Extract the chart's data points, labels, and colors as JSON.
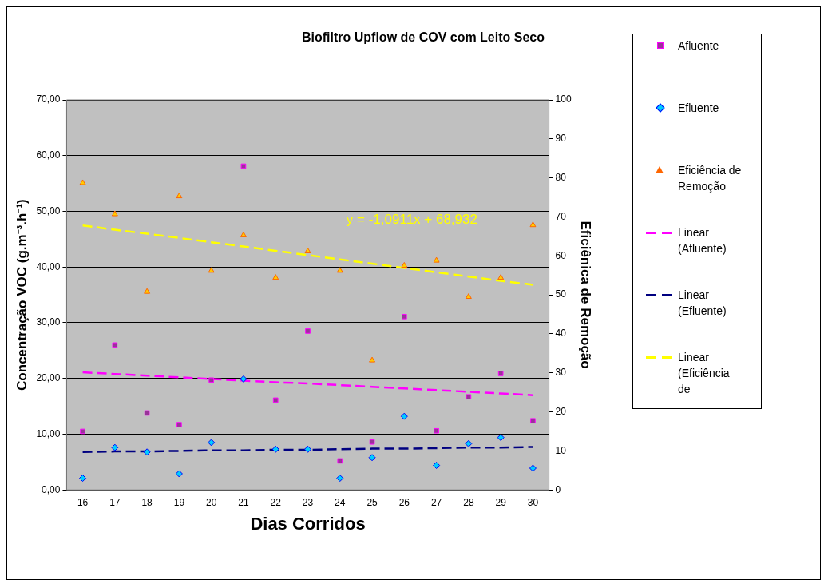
{
  "chart_data": {
    "type": "scatter",
    "title": "Biofiltro Upflow de COV com Leito Seco",
    "xlabel": "Dias Corridos",
    "ylabel": "Concentração VOC (g.m⁻³.h⁻¹)",
    "y2label": "Eficiênica de Remoção",
    "categories": [
      "16",
      "17",
      "18",
      "19",
      "20",
      "21",
      "22",
      "23",
      "24",
      "25",
      "26",
      "27",
      "28",
      "29",
      "30"
    ],
    "series": [
      {
        "name": "Afluente",
        "type": "scatter",
        "marker": "square",
        "color": "#993399",
        "values": [
          10.5,
          26.0,
          13.8,
          11.7,
          19.7,
          58.1,
          16.1,
          28.5,
          5.2,
          8.6,
          31.1,
          10.6,
          16.7,
          20.9,
          12.4
        ]
      },
      {
        "name": "Efluente",
        "type": "scatter",
        "marker": "diamond",
        "color": "#00ccff",
        "values": [
          2.1,
          7.6,
          6.8,
          2.9,
          8.5,
          19.9,
          7.3,
          7.3,
          2.1,
          5.8,
          13.2,
          4.4,
          8.3,
          9.4,
          3.9
        ]
      },
      {
        "name": "Eficiência de Remoção",
        "type": "scatter",
        "marker": "triangle",
        "axis": "y2",
        "color": "#ffcc00",
        "values": [
          78.7,
          70.7,
          50.8,
          75.3,
          56.2,
          65.3,
          54.4,
          61.2,
          56.2,
          33.2,
          57.5,
          58.8,
          49.5,
          54.4,
          67.9
        ]
      },
      {
        "name": "Linear (Afluente)",
        "type": "line",
        "marker": "none",
        "line_style": "dashed",
        "color": "#ff00ff",
        "values": [
          21.1,
          20.8,
          20.5,
          20.2,
          19.9,
          19.6,
          19.3,
          19.1,
          18.8,
          18.5,
          18.2,
          17.9,
          17.6,
          17.3,
          17.0
        ]
      },
      {
        "name": "Linear (Efluente)",
        "type": "line",
        "marker": "none",
        "line_style": "dashed",
        "color": "#000080",
        "values": [
          6.8,
          6.9,
          6.9,
          7.0,
          7.1,
          7.1,
          7.2,
          7.2,
          7.3,
          7.4,
          7.4,
          7.5,
          7.6,
          7.6,
          7.7
        ]
      },
      {
        "name": "Linear (Eficiência de",
        "type": "line",
        "marker": "none",
        "line_style": "dashed",
        "axis": "y2",
        "color": "#ffff00",
        "values": [
          67.8,
          66.7,
          65.7,
          64.6,
          63.5,
          62.4,
          61.3,
          60.2,
          59.1,
          58.0,
          56.9,
          55.8,
          54.7,
          53.6,
          52.6
        ]
      }
    ],
    "ylim": [
      0,
      70
    ],
    "yticks": [
      {
        "value": 0,
        "label": "0,00"
      },
      {
        "value": 10,
        "label": "10,00"
      },
      {
        "value": 20,
        "label": "20,00"
      },
      {
        "value": 30,
        "label": "30,00"
      },
      {
        "value": 40,
        "label": "40,00"
      },
      {
        "value": 50,
        "label": "50,00"
      },
      {
        "value": 60,
        "label": "60,00"
      },
      {
        "value": 70,
        "label": "70,00"
      }
    ],
    "y2lim": [
      0,
      100
    ],
    "y2ticks": [
      0,
      10,
      20,
      30,
      40,
      50,
      60,
      70,
      80,
      90,
      100
    ],
    "grid": "y",
    "legend": "right",
    "annotations": [
      "y = -1,0911x + 68,932"
    ]
  }
}
